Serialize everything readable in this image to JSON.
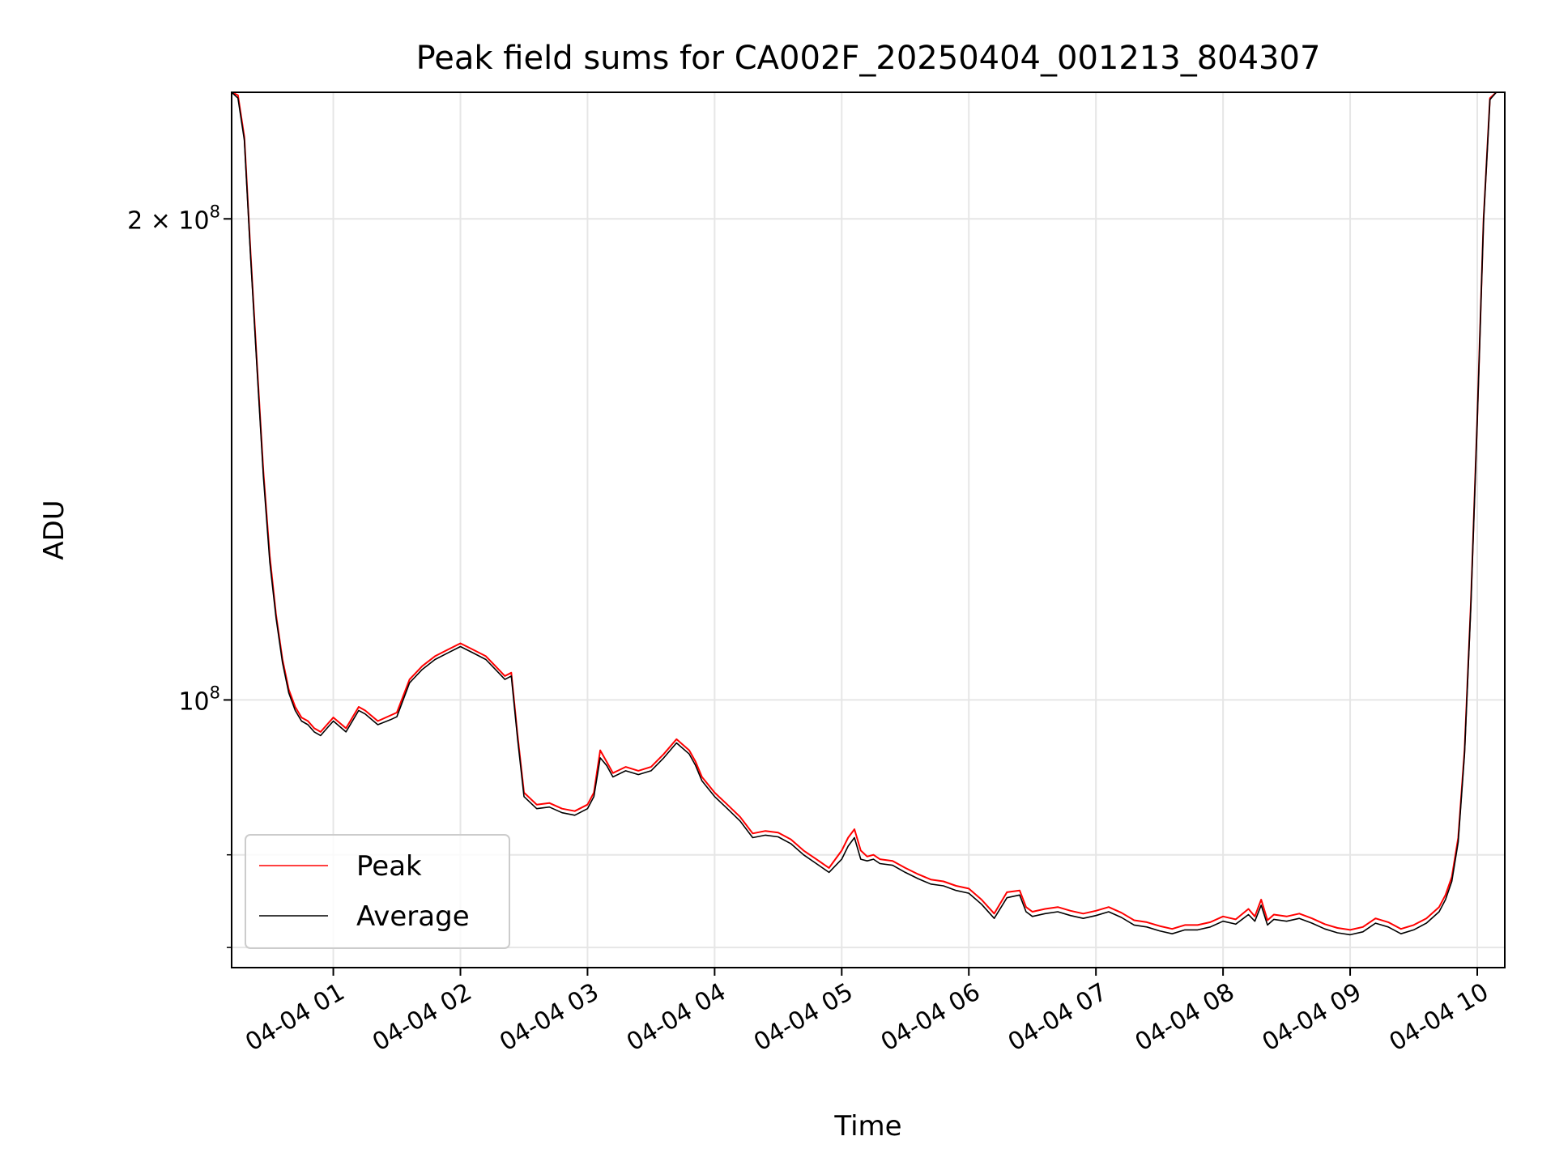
{
  "chart_data": {
    "type": "line",
    "title": "Peak field sums for CA002F_20250404_001213_804307",
    "xlabel": "Time",
    "ylabel": "ADU",
    "yscale": "log",
    "grid": true,
    "legend_position": "lower-left",
    "xlim": [
      "2025-04-04 00:12",
      "2025-04-04 10:13"
    ],
    "ylim": [
      68000000,
      240000000
    ],
    "x_ticks": [
      "04-04 01",
      "04-04 02",
      "04-04 03",
      "04-04 04",
      "04-04 05",
      "04-04 06",
      "04-04 07",
      "04-04 08",
      "04-04 09",
      "04-04 10"
    ],
    "y_ticks": [
      {
        "value": 200000000,
        "base": "2 × 10",
        "exp": "8"
      },
      {
        "value": 100000000,
        "base": "10",
        "exp": "8"
      }
    ],
    "series": [
      {
        "name": "Peak",
        "color": "#ff0000",
        "x": [
          "00:12",
          "00:15",
          "00:18",
          "00:21",
          "00:24",
          "00:27",
          "00:30",
          "00:33",
          "00:36",
          "00:39",
          "00:42",
          "00:45",
          "00:48",
          "00:51",
          "00:54",
          "00:57",
          "01:00",
          "01:06",
          "01:12",
          "01:15",
          "01:21",
          "01:27",
          "01:30",
          "01:36",
          "01:42",
          "01:48",
          "01:54",
          "02:00",
          "02:06",
          "02:12",
          "02:15",
          "02:18",
          "02:21",
          "02:24",
          "02:27",
          "02:30",
          "02:36",
          "02:42",
          "02:48",
          "02:54",
          "03:00",
          "03:03",
          "03:06",
          "03:09",
          "03:12",
          "03:18",
          "03:24",
          "03:30",
          "03:36",
          "03:42",
          "03:48",
          "03:51",
          "03:54",
          "03:57",
          "04:00",
          "04:06",
          "04:12",
          "04:18",
          "04:24",
          "04:30",
          "04:36",
          "04:42",
          "04:48",
          "04:54",
          "05:00",
          "05:03",
          "05:06",
          "05:09",
          "05:12",
          "05:15",
          "05:18",
          "05:24",
          "05:30",
          "05:36",
          "05:42",
          "05:48",
          "05:54",
          "06:00",
          "06:06",
          "06:12",
          "06:18",
          "06:24",
          "06:27",
          "06:30",
          "06:36",
          "06:42",
          "06:48",
          "06:54",
          "07:00",
          "07:06",
          "07:12",
          "07:18",
          "07:24",
          "07:30",
          "07:36",
          "07:42",
          "07:48",
          "07:54",
          "08:00",
          "08:06",
          "08:12",
          "08:15",
          "08:18",
          "08:21",
          "08:24",
          "08:30",
          "08:36",
          "08:42",
          "08:48",
          "08:54",
          "09:00",
          "09:06",
          "09:12",
          "09:18",
          "09:24",
          "09:30",
          "09:36",
          "09:42",
          "09:45",
          "09:48",
          "09:51",
          "09:54",
          "09:57",
          "10:00",
          "10:03",
          "10:06",
          "10:09",
          "10:13"
        ],
        "y": [
          240000000,
          239000000,
          225000000,
          190000000,
          162000000,
          139000000,
          123000000,
          113000000,
          106000000,
          101500000,
          99000000,
          97500000,
          97000000,
          96000000,
          95500000,
          96500000,
          97500000,
          96000000,
          99000000,
          98500000,
          97000000,
          97800000,
          98200000,
          103000000,
          105000000,
          106500000,
          107500000,
          108500000,
          107500000,
          106500000,
          105500000,
          104500000,
          103500000,
          104000000,
          95000000,
          87500000,
          86000000,
          86200000,
          85500000,
          85200000,
          86000000,
          87500000,
          93000000,
          91500000,
          90000000,
          90800000,
          90300000,
          90800000,
          92500000,
          94500000,
          93000000,
          91500000,
          89500000,
          88500000,
          87500000,
          86000000,
          84500000,
          82500000,
          82800000,
          82600000,
          81800000,
          80500000,
          79500000,
          78500000,
          80500000,
          82000000,
          83000000,
          80500000,
          79800000,
          80000000,
          79500000,
          79300000,
          78500000,
          77800000,
          77200000,
          77000000,
          76500000,
          76200000,
          75000000,
          73500000,
          75800000,
          76000000,
          74200000,
          73700000,
          74000000,
          74200000,
          73800000,
          73500000,
          73800000,
          74200000,
          73600000,
          72800000,
          72600000,
          72200000,
          71900000,
          72300000,
          72300000,
          72600000,
          73200000,
          72900000,
          74000000,
          73200000,
          75000000,
          72800000,
          73400000,
          73200000,
          73500000,
          73000000,
          72400000,
          72000000,
          71800000,
          72100000,
          73000000,
          72600000,
          71900000,
          72300000,
          73000000,
          74200000,
          75500000,
          77500000,
          82000000,
          93000000,
          115000000,
          150000000,
          200000000,
          238000000,
          240000000,
          240000000
        ]
      },
      {
        "name": "Average",
        "color": "#000000",
        "x": [
          "00:12",
          "00:15",
          "00:18",
          "00:21",
          "00:24",
          "00:27",
          "00:30",
          "00:33",
          "00:36",
          "00:39",
          "00:42",
          "00:45",
          "00:48",
          "00:51",
          "00:54",
          "00:57",
          "01:00",
          "01:06",
          "01:12",
          "01:15",
          "01:21",
          "01:27",
          "01:30",
          "01:36",
          "01:42",
          "01:48",
          "01:54",
          "02:00",
          "02:06",
          "02:12",
          "02:15",
          "02:18",
          "02:21",
          "02:24",
          "02:27",
          "02:30",
          "02:36",
          "02:42",
          "02:48",
          "02:54",
          "03:00",
          "03:03",
          "03:06",
          "03:09",
          "03:12",
          "03:18",
          "03:24",
          "03:30",
          "03:36",
          "03:42",
          "03:48",
          "03:51",
          "03:54",
          "03:57",
          "04:00",
          "04:06",
          "04:12",
          "04:18",
          "04:24",
          "04:30",
          "04:36",
          "04:42",
          "04:48",
          "04:54",
          "05:00",
          "05:03",
          "05:06",
          "05:09",
          "05:12",
          "05:15",
          "05:18",
          "05:24",
          "05:30",
          "05:36",
          "05:42",
          "05:48",
          "05:54",
          "06:00",
          "06:06",
          "06:12",
          "06:18",
          "06:24",
          "06:27",
          "06:30",
          "06:36",
          "06:42",
          "06:48",
          "06:54",
          "07:00",
          "07:06",
          "07:12",
          "07:18",
          "07:24",
          "07:30",
          "07:36",
          "07:42",
          "07:48",
          "07:54",
          "08:00",
          "08:06",
          "08:12",
          "08:15",
          "08:18",
          "08:21",
          "08:24",
          "08:30",
          "08:36",
          "08:42",
          "08:48",
          "08:54",
          "09:00",
          "09:06",
          "09:12",
          "09:18",
          "09:24",
          "09:30",
          "09:36",
          "09:42",
          "09:45",
          "09:48",
          "09:51",
          "09:54",
          "09:57",
          "10:00",
          "10:03",
          "10:06",
          "10:09",
          "10:13"
        ],
        "y": [
          240000000,
          238000000,
          224000000,
          189000000,
          161000000,
          138000000,
          122000000,
          112500000,
          105500000,
          101000000,
          98500000,
          97000000,
          96500000,
          95500000,
          95000000,
          96000000,
          97000000,
          95500000,
          98500000,
          98000000,
          96500000,
          97200000,
          97600000,
          102500000,
          104500000,
          106000000,
          107000000,
          108000000,
          107000000,
          106000000,
          105000000,
          104000000,
          103000000,
          103500000,
          94500000,
          87000000,
          85500000,
          85700000,
          85000000,
          84700000,
          85500000,
          87000000,
          92000000,
          91000000,
          89500000,
          90300000,
          89800000,
          90300000,
          92000000,
          94000000,
          92500000,
          91000000,
          89000000,
          88000000,
          87000000,
          85500000,
          84000000,
          82000000,
          82300000,
          82100000,
          81300000,
          80000000,
          79000000,
          78000000,
          79500000,
          81000000,
          82000000,
          79500000,
          79300000,
          79500000,
          79000000,
          78800000,
          78000000,
          77300000,
          76700000,
          76500000,
          76000000,
          75700000,
          74500000,
          73000000,
          75200000,
          75500000,
          73700000,
          73200000,
          73500000,
          73700000,
          73300000,
          73000000,
          73300000,
          73700000,
          73100000,
          72300000,
          72100000,
          71700000,
          71400000,
          71800000,
          71800000,
          72100000,
          72700000,
          72400000,
          73400000,
          72700000,
          74400000,
          72300000,
          72900000,
          72700000,
          73000000,
          72500000,
          71900000,
          71500000,
          71300000,
          71600000,
          72500000,
          72100000,
          71400000,
          71800000,
          72500000,
          73700000,
          75000000,
          77000000,
          81500000,
          92500000,
          114500000,
          149500000,
          199500000,
          237500000,
          240000000,
          240000000
        ]
      }
    ]
  }
}
